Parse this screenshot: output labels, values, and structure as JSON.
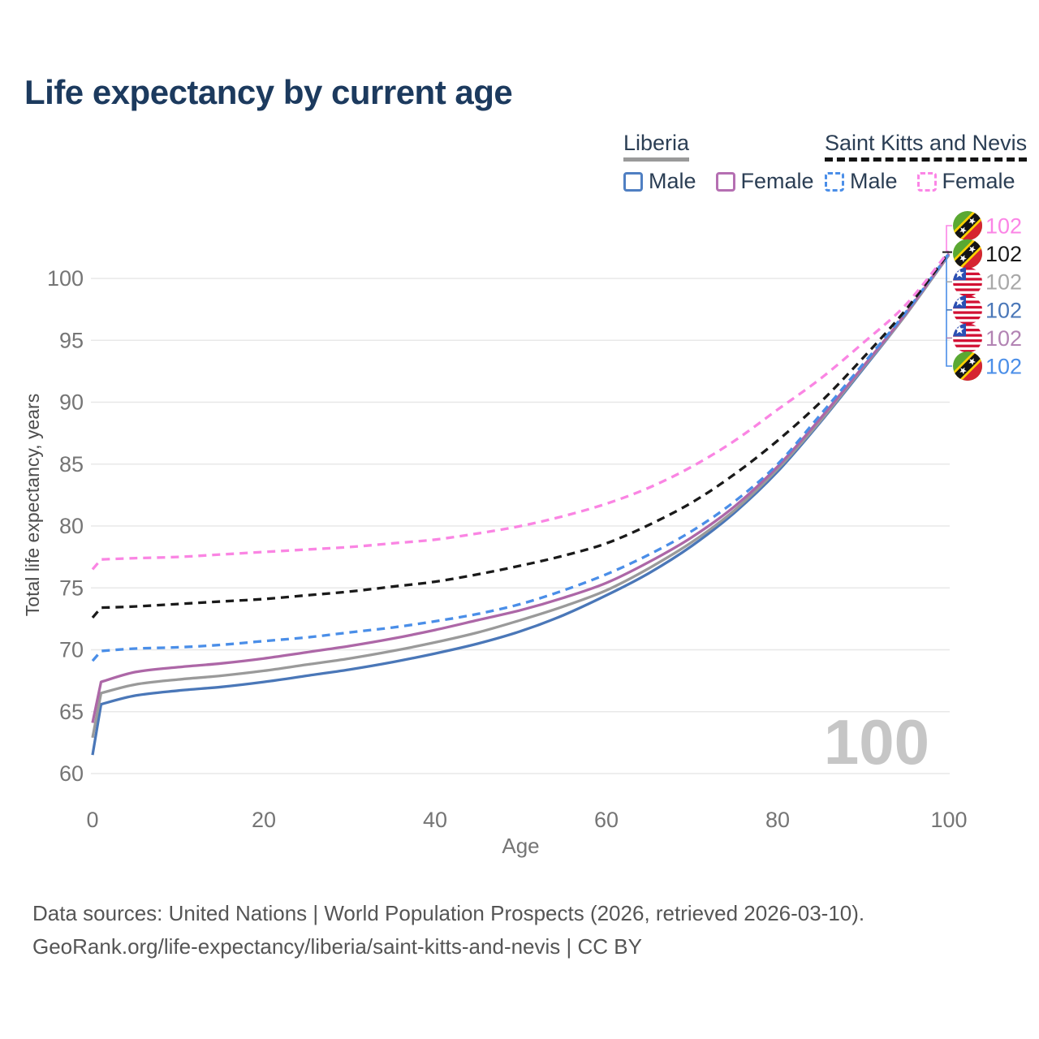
{
  "title": "Life expectancy by current age",
  "legend": {
    "liberia": {
      "name": "Liberia",
      "male_label": "Male",
      "female_label": "Female"
    },
    "skn": {
      "name": "Saint Kitts and Nevis",
      "male_label": "Male",
      "female_label": "Female"
    }
  },
  "colors": {
    "title": "#1c3a5e",
    "grid": "#e8e8e8",
    "tick": "#757575",
    "axis_title": "#4d4d4d",
    "watermark": "#c6c6c6",
    "liberia_male": "#4a77b8",
    "liberia_female": "#ad67a7",
    "liberia_total": "#9a9a9a",
    "skn_male": "#4a8ee8",
    "skn_total": "#1a1a1a",
    "skn_female": "#fa85e3"
  },
  "watermark": "100",
  "right_labels": [
    {
      "flag": "skn",
      "icon": "saint-kitts-nevis-flag-icon",
      "value": "102",
      "color": "#fb85e6"
    },
    {
      "flag": "skn",
      "icon": "saint-kitts-nevis-flag-icon",
      "value": "102",
      "color": "#1a1a1a"
    },
    {
      "flag": "liberia",
      "icon": "liberia-flag-icon",
      "value": "102",
      "color": "#a8a8a8"
    },
    {
      "flag": "liberia",
      "icon": "liberia-flag-icon",
      "value": "102",
      "color": "#4a77b8"
    },
    {
      "flag": "liberia",
      "icon": "liberia-flag-icon",
      "value": "102",
      "color": "#b283b3"
    },
    {
      "flag": "skn",
      "icon": "saint-kitts-nevis-flag-icon",
      "value": "102",
      "color": "#4a8ee8"
    }
  ],
  "footer": {
    "line1": "Data sources: United Nations | World Population Prospects (2026, retrieved 2026-03-10).",
    "line2": "GeoRank.org/life-expectancy/liberia/saint-kitts-and-nevis | CC BY"
  },
  "chart_data": {
    "type": "line",
    "title": "Life expectancy by current age",
    "xlabel": "Age",
    "ylabel": "Total life expectancy, years",
    "xlim": [
      0,
      100
    ],
    "ylim": [
      60,
      100
    ],
    "xticks": [
      0,
      20,
      40,
      60,
      80,
      100
    ],
    "yticks": [
      60,
      65,
      70,
      75,
      80,
      85,
      90,
      95,
      100
    ],
    "grid": "horizontal",
    "legend_position": "top-right",
    "x": [
      0,
      1,
      5,
      10,
      15,
      20,
      25,
      30,
      35,
      40,
      45,
      50,
      55,
      60,
      65,
      70,
      75,
      80,
      85,
      90,
      95,
      100
    ],
    "series": [
      {
        "name": "Liberia Male",
        "country": "Liberia",
        "sex": "Male",
        "style": "solid",
        "color": "#4a77b8",
        "values": [
          61.5,
          65.6,
          66.3,
          66.7,
          67.0,
          67.4,
          67.9,
          68.4,
          69.0,
          69.7,
          70.5,
          71.5,
          72.8,
          74.4,
          76.2,
          78.4,
          81.1,
          84.4,
          88.4,
          92.7,
          97.1,
          101.9
        ]
      },
      {
        "name": "Liberia Total",
        "country": "Liberia",
        "sex": "Total",
        "style": "solid",
        "color": "#9a9a9a",
        "values": [
          62.9,
          66.5,
          67.2,
          67.6,
          67.9,
          68.3,
          68.8,
          69.3,
          69.9,
          70.6,
          71.4,
          72.4,
          73.5,
          74.8,
          76.6,
          78.7,
          81.3,
          84.6,
          88.5,
          92.8,
          97.1,
          101.9
        ]
      },
      {
        "name": "Liberia Female",
        "country": "Liberia",
        "sex": "Female",
        "style": "solid",
        "color": "#ad67a7",
        "values": [
          64.1,
          67.4,
          68.2,
          68.6,
          68.9,
          69.3,
          69.8,
          70.3,
          70.9,
          71.6,
          72.4,
          73.2,
          74.2,
          75.4,
          77.1,
          79.1,
          81.6,
          84.8,
          88.7,
          92.9,
          97.2,
          102.0
        ]
      },
      {
        "name": "Saint Kitts and Nevis Male",
        "country": "Saint Kitts and Nevis",
        "sex": "Male",
        "style": "dashed",
        "color": "#4a8ee8",
        "values": [
          69.1,
          69.9,
          70.1,
          70.2,
          70.4,
          70.7,
          71.0,
          71.4,
          71.8,
          72.3,
          72.9,
          73.7,
          74.8,
          76.1,
          77.7,
          79.6,
          82.0,
          85.0,
          89.0,
          93.1,
          97.3,
          102.0
        ]
      },
      {
        "name": "Saint Kitts and Nevis Total",
        "country": "Saint Kitts and Nevis",
        "sex": "Total",
        "style": "dashed",
        "color": "#1a1a1a",
        "values": [
          72.6,
          73.4,
          73.5,
          73.7,
          73.9,
          74.1,
          74.4,
          74.7,
          75.1,
          75.5,
          76.1,
          76.8,
          77.6,
          78.6,
          80.1,
          81.9,
          84.2,
          86.9,
          90.0,
          93.6,
          97.5,
          102.1
        ]
      },
      {
        "name": "Saint Kitts and Nevis Female",
        "country": "Saint Kitts and Nevis",
        "sex": "Female",
        "style": "dashed",
        "color": "#fa85e3",
        "values": [
          76.5,
          77.3,
          77.4,
          77.5,
          77.7,
          77.9,
          78.1,
          78.3,
          78.6,
          78.9,
          79.4,
          80.0,
          80.8,
          81.8,
          83.1,
          84.8,
          86.9,
          89.4,
          91.9,
          94.8,
          97.9,
          102.2
        ]
      }
    ]
  }
}
